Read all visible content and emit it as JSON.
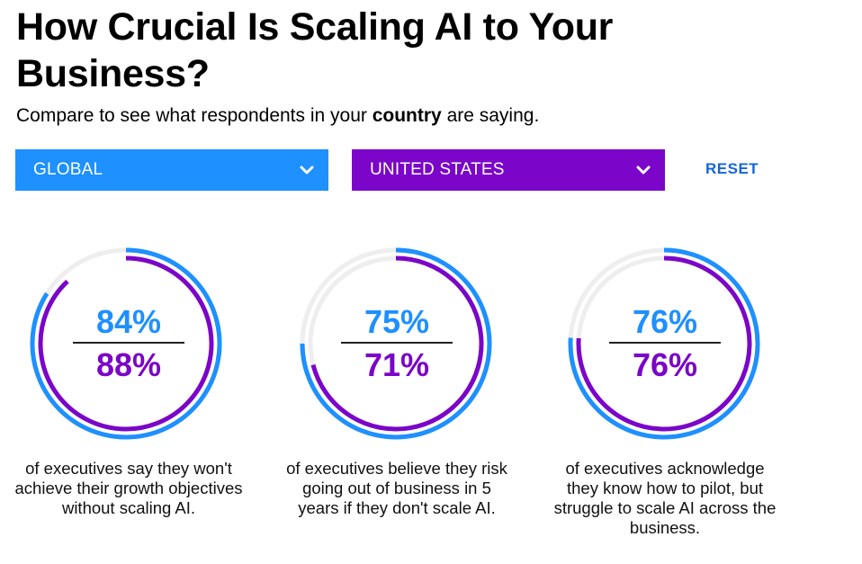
{
  "header": {
    "title": "How Crucial Is Scaling AI to Your Business?",
    "subtitle_before": "Compare to see what respondents in your ",
    "subtitle_bold": "country",
    "subtitle_after": " are saying."
  },
  "filters": {
    "global_label": "GLOBAL",
    "country_label": "UNITED STATES",
    "reset_label": "RESET"
  },
  "colors": {
    "global": "#1e90ff",
    "country": "#7b05c8",
    "track": "#eeeeee"
  },
  "stats": [
    {
      "global_value": 84,
      "country_value": 88,
      "global_label": "84%",
      "country_label": "88%",
      "description": "of executives say they won't achieve their growth objectives without scaling AI."
    },
    {
      "global_value": 75,
      "country_value": 71,
      "global_label": "75%",
      "country_label": "71%",
      "description": "of executives believe they risk going out of business in 5 years if they don't scale AI."
    },
    {
      "global_value": 76,
      "country_value": 76,
      "global_label": "76%",
      "country_label": "76%",
      "description": "of executives acknowledge they know how to pilot, but struggle to scale AI across the business."
    }
  ]
}
